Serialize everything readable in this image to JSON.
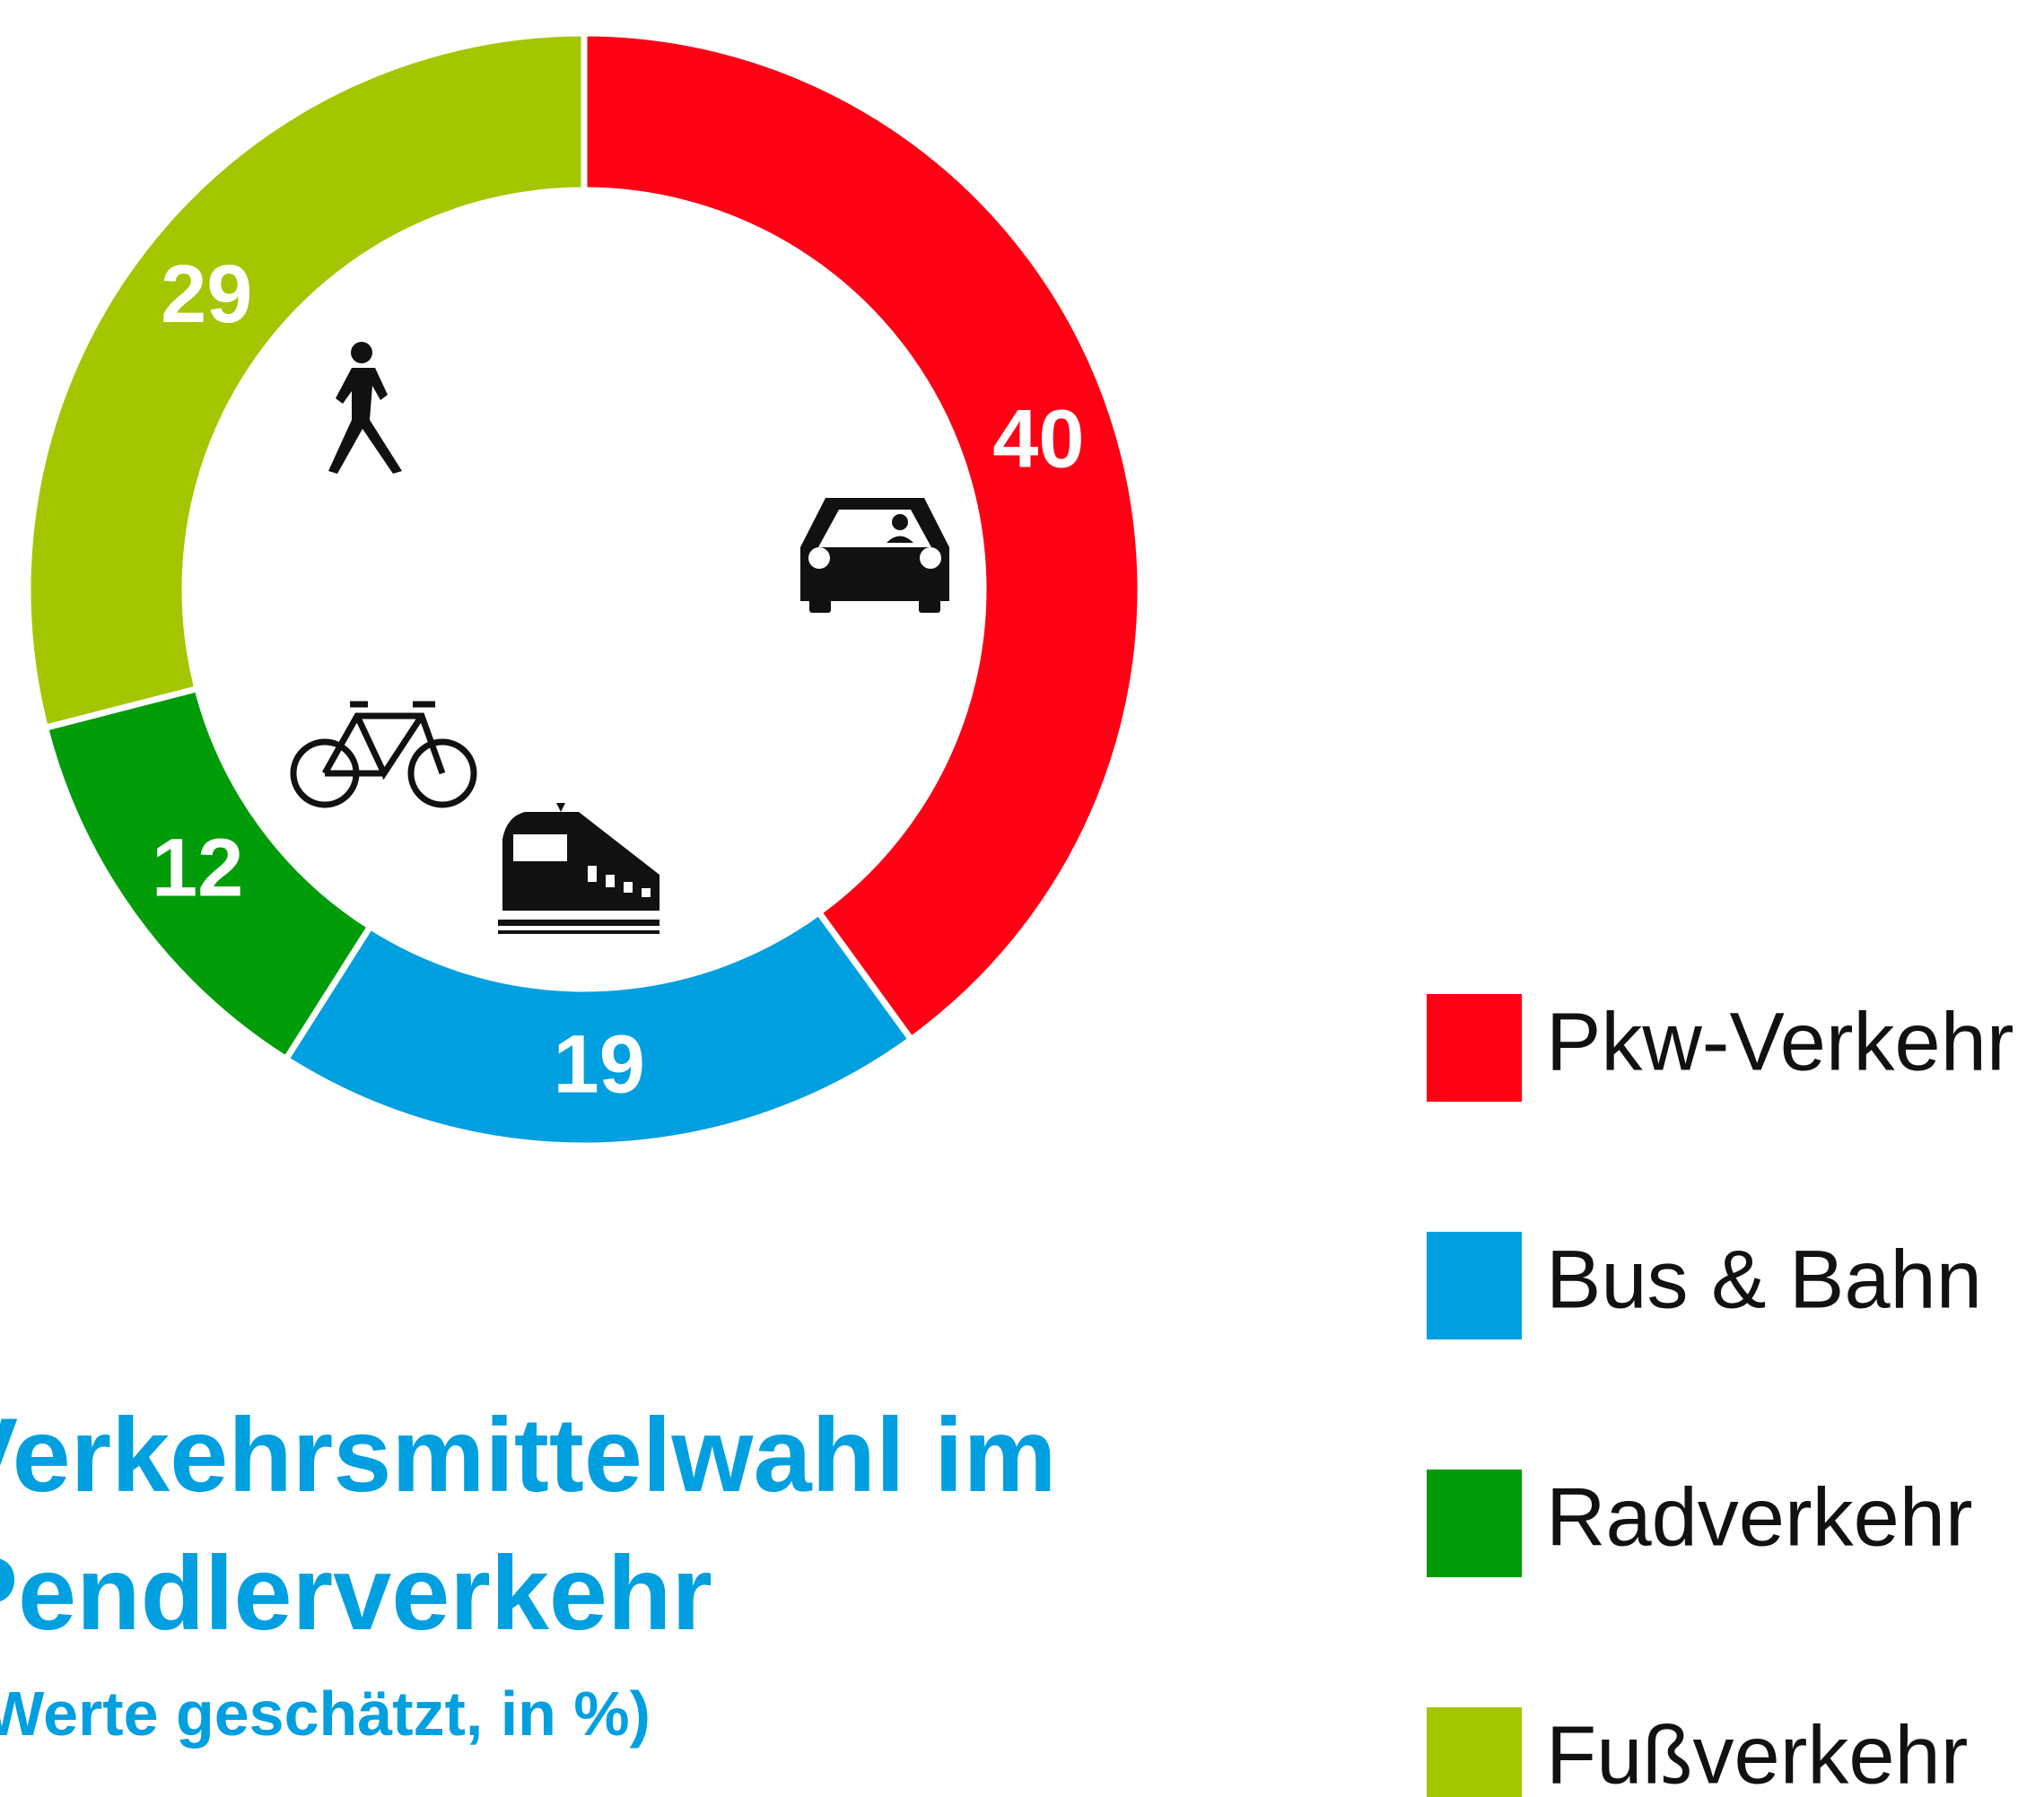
{
  "chart_data": {
    "type": "pie",
    "title": "Verkehrsmittelwahl im Pendlerverkehr",
    "subtitle": "(Werte geschätzt, in %)",
    "categories": [
      "Pkw-Verkehr",
      "Bus & Bahn",
      "Radverkehr",
      "Fußverkehr"
    ],
    "values": [
      40,
      19,
      12,
      29
    ],
    "colors": [
      "#ff0015",
      "#009fe0",
      "#009c0a",
      "#a3c600"
    ],
    "legend": "right"
  }
}
